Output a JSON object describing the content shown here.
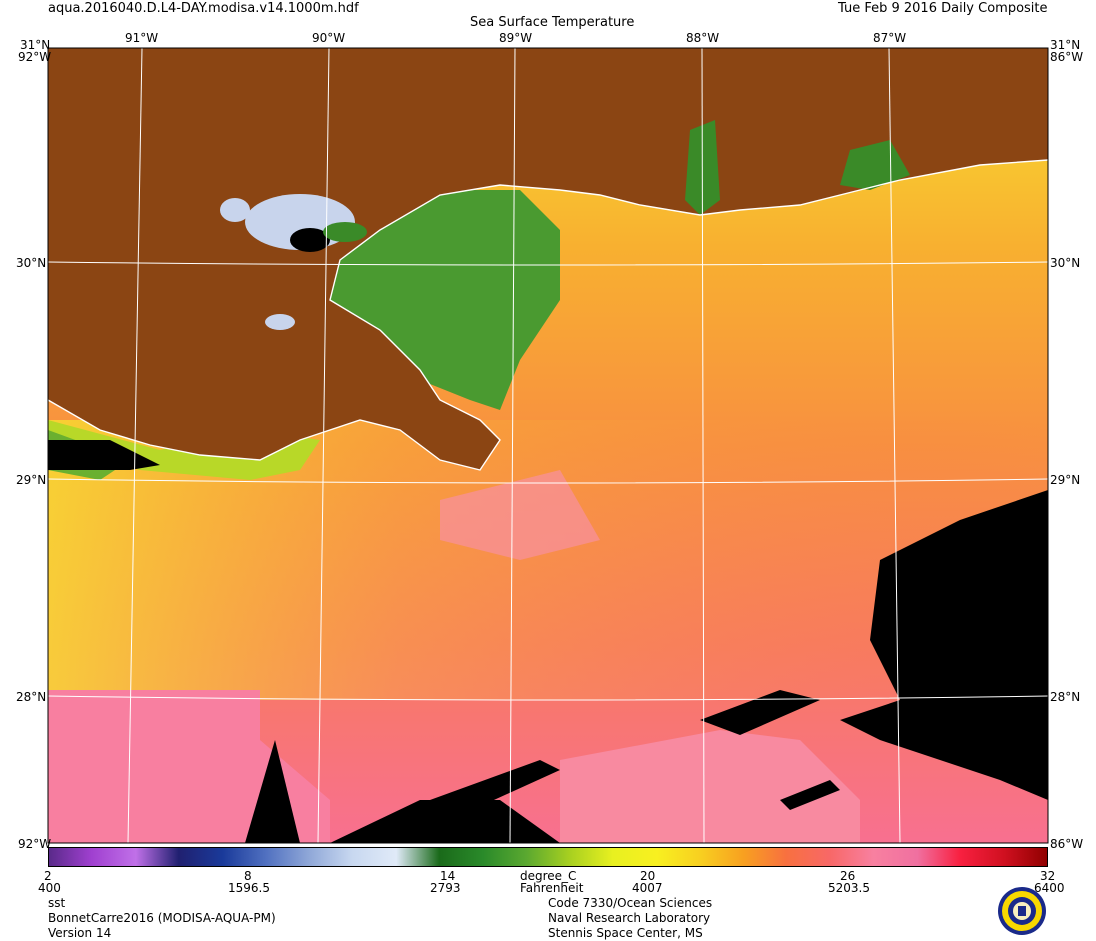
{
  "header": {
    "filename": "aqua.2016040.D.L4-DAY.modisa.v14.1000m.hdf",
    "title": "Sea Surface Temperature",
    "date": "Tue Feb  9 2016 Daily Composite"
  },
  "map": {
    "lon_labels": [
      "91°W",
      "90°W",
      "89°W",
      "88°W",
      "87°W"
    ],
    "lat_labels": [
      "30°N",
      "29°N",
      "28°N"
    ],
    "corner_top": "31°N",
    "corner_w_top": "92°W",
    "corner_e_top": "86°W",
    "corner_w_bottom": "92°W",
    "corner_e_bottom": "86°W"
  },
  "colorbar": {
    "c_ticks": [
      "2",
      "8",
      "14",
      "20",
      "26",
      "32"
    ],
    "f_ticks": [
      "400",
      "1596.5",
      "2793",
      "4007",
      "5203.5",
      "6400"
    ],
    "unit_c": "degree_C",
    "unit_f": "Fahrenheit",
    "stops": [
      "#5a2a8a",
      "#a040d0",
      "#c070e8",
      "#202070",
      "#1a3a9a",
      "#5070c0",
      "#90a8d8",
      "#c8d8f0",
      "#e0eaf8",
      "#1a6a1a",
      "#2a8a2a",
      "#5aa830",
      "#a8d020",
      "#e8f020",
      "#f8f020",
      "#f8d020",
      "#f8a020",
      "#f87040",
      "#f86868",
      "#f880a0",
      "#f070a0",
      "#f82040",
      "#d01020",
      "#900000"
    ]
  },
  "footer": {
    "left1": "sst",
    "left2": "BonnetCarre2016 (MODISA-AQUA-PM)",
    "left3": "Version 14",
    "right1": "Code 7330/Ocean Sciences",
    "right2": "Naval Research Laboratory",
    "right3": "Stennis Space Center, MS"
  },
  "colors": {
    "land": "#8b4513",
    "nodata": "#000000",
    "cloud": "#c8d4ec"
  }
}
